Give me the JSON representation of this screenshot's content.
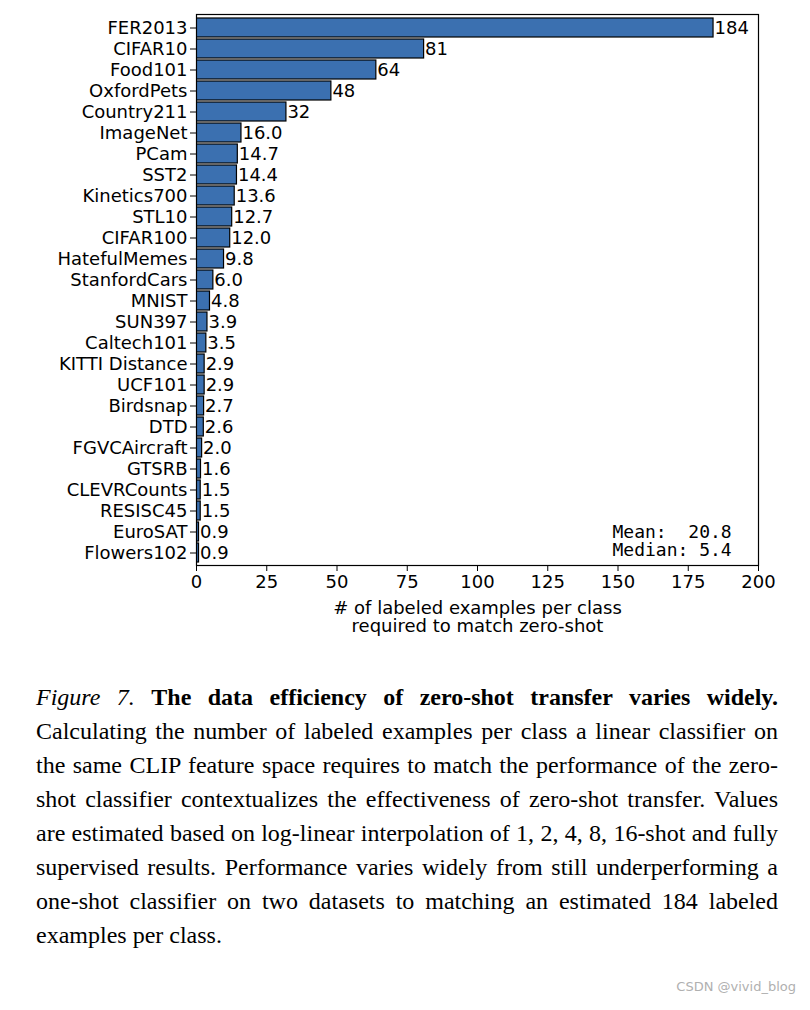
{
  "chart_data": {
    "type": "bar",
    "orientation": "horizontal",
    "categories": [
      "FER2013",
      "CIFAR10",
      "Food101",
      "OxfordPets",
      "Country211",
      "ImageNet",
      "PCam",
      "SST2",
      "Kinetics700",
      "STL10",
      "CIFAR100",
      "HatefulMemes",
      "StanfordCars",
      "MNIST",
      "SUN397",
      "Caltech101",
      "KITTI Distance",
      "UCF101",
      "Birdsnap",
      "DTD",
      "FGVCAircraft",
      "GTSRB",
      "CLEVRCounts",
      "RESISC45",
      "EuroSAT",
      "Flowers102"
    ],
    "values": [
      184,
      81,
      64,
      48,
      32,
      16.0,
      14.7,
      14.4,
      13.6,
      12.7,
      12.0,
      9.8,
      6.0,
      4.8,
      3.9,
      3.5,
      2.9,
      2.9,
      2.7,
      2.6,
      2.0,
      1.6,
      1.5,
      1.5,
      0.9,
      0.9
    ],
    "value_labels": [
      "184",
      "81",
      "64",
      "48",
      "32",
      "16.0",
      "14.7",
      "14.4",
      "13.6",
      "12.7",
      "12.0",
      "9.8",
      "6.0",
      "4.8",
      "3.9",
      "3.5",
      "2.9",
      "2.9",
      "2.7",
      "2.6",
      "2.0",
      "1.6",
      "1.5",
      "1.5",
      "0.9",
      "0.9"
    ],
    "data_labels": true,
    "color": "#3b70b0",
    "xlabel": "# of labeled examples per class\nrequired to match zero-shot",
    "xlim": [
      0,
      200
    ],
    "xticks": [
      0,
      25,
      50,
      75,
      100,
      125,
      150,
      175,
      200
    ],
    "grid": false,
    "annotations": [
      "Mean:  20.8",
      "Median: 5.4"
    ],
    "caption": {
      "label": "Figure 7.",
      "title": "The data efficiency of zero-shot transfer varies widely.",
      "text": "Calculating the number of labeled examples per class a linear classifier on the same CLIP feature space requires to match the performance of the zero-shot classifier contextualizes the effectiveness of zero-shot transfer. Values are estimated based on log-linear interpolation of 1, 2, 4, 8, 16-shot and fully supervised results. Performance varies widely from still underperforming a one-shot classifier on two datasets to matching an estimated 184 labeled examples per class."
    },
    "watermark": "CSDN @vivid_blog"
  }
}
